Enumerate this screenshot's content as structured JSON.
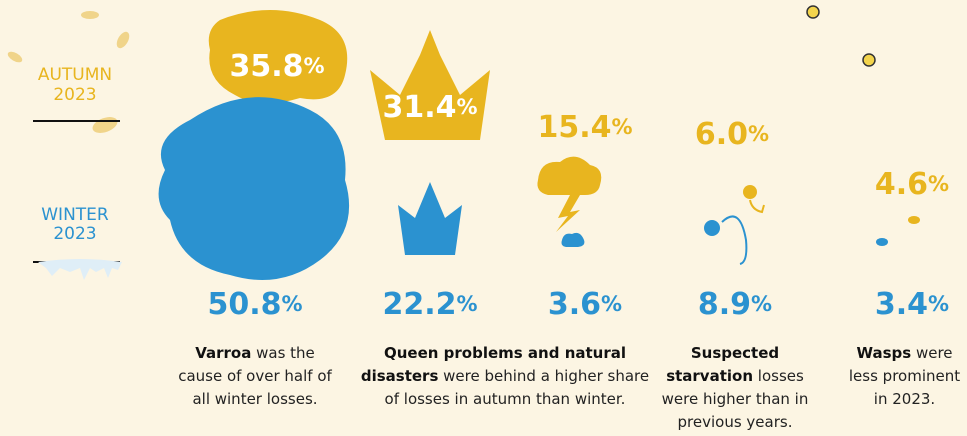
{
  "legend": {
    "autumn": {
      "label": "AUTUMN",
      "year": "2023"
    },
    "winter": {
      "label": "WINTER",
      "year": "2023"
    }
  },
  "items": [
    {
      "autumn": "35.8%",
      "winter": "50.8%"
    },
    {
      "autumn": "31.4%",
      "winter": "22.2%"
    },
    {
      "autumn": "15.4%",
      "winter": "3.6%"
    },
    {
      "autumn": "6.0%",
      "winter": "8.9%"
    },
    {
      "autumn": "4.6%",
      "winter": "3.4%"
    }
  ],
  "captions": [
    {
      "bold": "Varroa",
      "text": " was the cause of over half of all winter losses."
    },
    {
      "bold": "Queen problems and natural disasters",
      "text": " were behind a higher share of losses in autumn than winter."
    },
    {
      "bold": "Suspected starvation",
      "text": " losses were higher than in previous years."
    },
    {
      "bold": "Wasps",
      "text": " were less prominent in 2023."
    }
  ]
}
